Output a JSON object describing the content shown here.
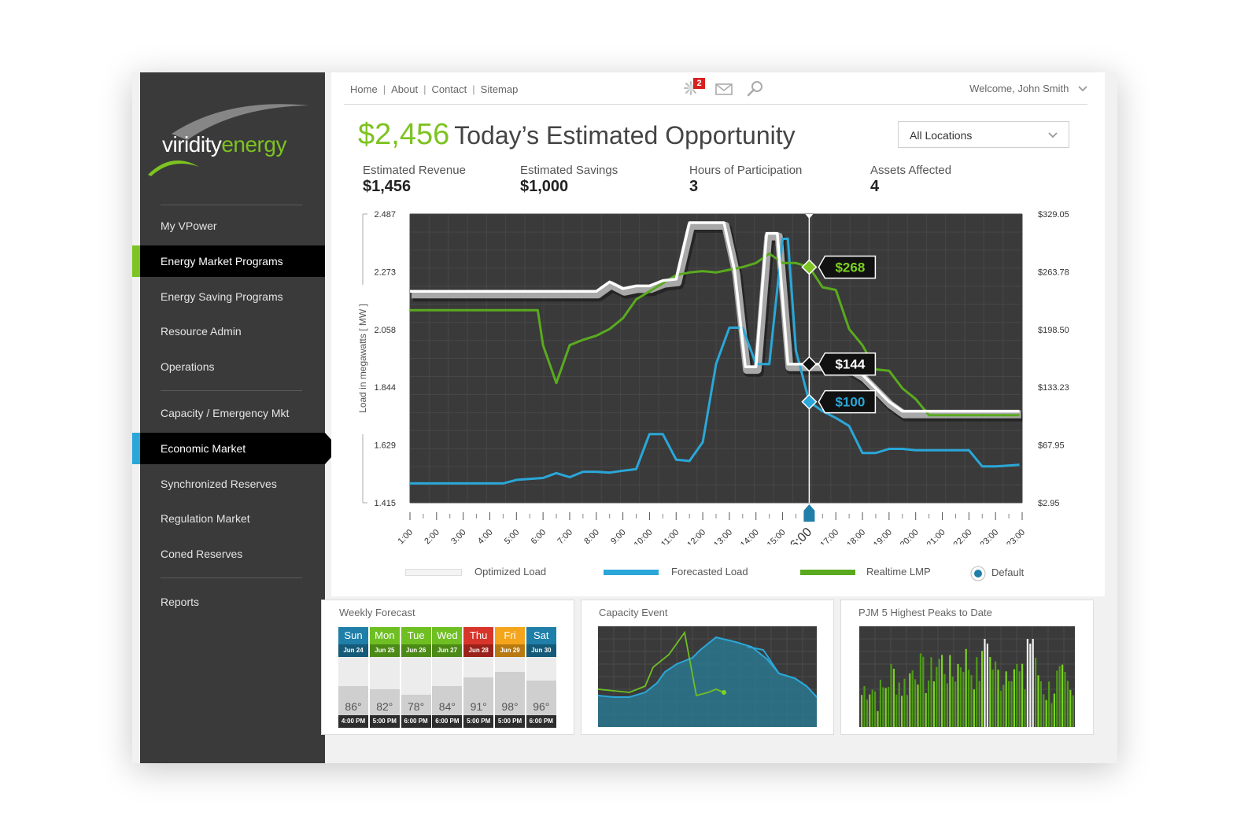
{
  "brand": {
    "part1": "viridity",
    "part2": "energy"
  },
  "nav": {
    "items": [
      {
        "label": "My VPower"
      },
      {
        "label": "Energy Market Programs"
      },
      {
        "label": "Energy Saving Programs"
      },
      {
        "label": "Resource Admin"
      },
      {
        "label": "Operations"
      },
      {
        "label": "Capacity / Emergency Mkt"
      },
      {
        "label": "Economic Market"
      },
      {
        "label": "Synchronized Reserves"
      },
      {
        "label": "Regulation Market"
      },
      {
        "label": "Coned Reserves"
      },
      {
        "label": "Reports"
      }
    ],
    "accent_green": "#7dc321",
    "accent_blue": "#2aa7d8"
  },
  "topnav": {
    "links": [
      "Home",
      "About",
      "Contact",
      "Sitemap"
    ],
    "sep": "|",
    "alert_count": "2",
    "welcome": "Welcome, John Smith"
  },
  "header": {
    "amount": "$2,456",
    "title": "Today’s Estimated Opportunity",
    "location": "All Locations"
  },
  "stats": [
    {
      "label": "Estimated Revenue",
      "value": "$1,456"
    },
    {
      "label": "Estimated Savings",
      "value": "$1,000"
    },
    {
      "label": "Hours of Participation",
      "value": "3"
    },
    {
      "label": "Assets Affected",
      "value": "4"
    }
  ],
  "chart_data": {
    "type": "line",
    "ylabel": "Load in megawatts [ MW ]",
    "y_ticks": [
      "2.487",
      "2.273",
      "2.058",
      "1.844",
      "1.629",
      "1.415"
    ],
    "y2_ticks": [
      "$329.05",
      "$263.78",
      "$198.50",
      "$133.23",
      "$67.95",
      "$2.95"
    ],
    "ylim": [
      1.415,
      2.487
    ],
    "x_ticks": [
      "1:00",
      "2:00",
      "3:00",
      "4:00",
      "5:00",
      "6:00",
      "7:00",
      "8:00",
      "9:00",
      "10:00",
      "11:00",
      "12:00",
      "13:00",
      "14:00",
      "15:00",
      "16:00",
      "17:00",
      "18:00",
      "19:00",
      "20:00",
      "21:00",
      "22:00",
      "23:00",
      "23:00"
    ],
    "selected_x": "16:00",
    "callouts": [
      {
        "label": "$268",
        "series": "Realtime LMP",
        "value": 2.29
      },
      {
        "label": "$144",
        "series": "Optimized Load",
        "value": 1.93
      },
      {
        "label": "$100",
        "series": "Forecasted Load",
        "value": 1.79
      }
    ],
    "series": [
      {
        "name": "Optimized Load",
        "color": "#ffffff",
        "points": [
          [
            0,
            2.2
          ],
          [
            7,
            2.2
          ],
          [
            7.5,
            2.235
          ],
          [
            8,
            2.21
          ],
          [
            8.5,
            2.22
          ],
          [
            9,
            2.22
          ],
          [
            9.5,
            2.24
          ],
          [
            10,
            2.245
          ],
          [
            10.5,
            2.455
          ],
          [
            11,
            2.455
          ],
          [
            11.5,
            2.455
          ],
          [
            11.8,
            2.455
          ],
          [
            12.2,
            2.275
          ],
          [
            12.6,
            1.92
          ],
          [
            13,
            1.92
          ],
          [
            13.4,
            2.415
          ],
          [
            13.8,
            2.415
          ],
          [
            14.2,
            1.93
          ],
          [
            14.5,
            1.93
          ],
          [
            15,
            1.93
          ],
          [
            15.5,
            1.93
          ],
          [
            16,
            1.93
          ],
          [
            16.5,
            1.92
          ],
          [
            17,
            1.89
          ],
          [
            17.5,
            1.84
          ],
          [
            18,
            1.79
          ],
          [
            18.5,
            1.755
          ],
          [
            19,
            1.755
          ],
          [
            22.9,
            1.755
          ]
        ]
      },
      {
        "name": "Forecasted Load",
        "color": "#2aa7d8",
        "points": [
          [
            0,
            1.487
          ],
          [
            3.5,
            1.487
          ],
          [
            4,
            1.5
          ],
          [
            5,
            1.507
          ],
          [
            5.5,
            1.525
          ],
          [
            6,
            1.51
          ],
          [
            6.5,
            1.53
          ],
          [
            7,
            1.53
          ],
          [
            7.5,
            1.527
          ],
          [
            8,
            1.534
          ],
          [
            8.5,
            1.54
          ],
          [
            9,
            1.67
          ],
          [
            9.5,
            1.67
          ],
          [
            10,
            1.575
          ],
          [
            10.5,
            1.57
          ],
          [
            11,
            1.64
          ],
          [
            11.5,
            1.93
          ],
          [
            12,
            2.065
          ],
          [
            12.5,
            2.065
          ],
          [
            13,
            1.93
          ],
          [
            13.5,
            1.93
          ],
          [
            14,
            2.395
          ],
          [
            14.2,
            2.395
          ],
          [
            14.5,
            1.98
          ],
          [
            15,
            1.79
          ],
          [
            15.5,
            1.755
          ],
          [
            16,
            1.73
          ],
          [
            16.5,
            1.7
          ],
          [
            17,
            1.6
          ],
          [
            17.5,
            1.6
          ],
          [
            18,
            1.615
          ],
          [
            18.5,
            1.615
          ],
          [
            19,
            1.61
          ],
          [
            19.5,
            1.61
          ],
          [
            20,
            1.61
          ],
          [
            20.5,
            1.61
          ],
          [
            21,
            1.61
          ],
          [
            21.5,
            1.55
          ],
          [
            22,
            1.55
          ],
          [
            22.9,
            1.556
          ]
        ]
      },
      {
        "name": "Realtime LMP",
        "color": "#5aaa1f",
        "points": [
          [
            0,
            2.13
          ],
          [
            4.5,
            2.13
          ],
          [
            4.8,
            2.13
          ],
          [
            5,
            2.0
          ],
          [
            5.5,
            1.86
          ],
          [
            6,
            2.0
          ],
          [
            6.5,
            2.02
          ],
          [
            7,
            2.035
          ],
          [
            7.5,
            2.06
          ],
          [
            8,
            2.1
          ],
          [
            8.5,
            2.17
          ],
          [
            9,
            2.2
          ],
          [
            9.5,
            2.23
          ],
          [
            10,
            2.26
          ],
          [
            10.5,
            2.27
          ],
          [
            11,
            2.275
          ],
          [
            11.5,
            2.27
          ],
          [
            12,
            2.28
          ],
          [
            12.5,
            2.29
          ],
          [
            13,
            2.305
          ],
          [
            13.5,
            2.34
          ],
          [
            14,
            2.305
          ],
          [
            14.5,
            2.305
          ],
          [
            15,
            2.29
          ],
          [
            15.5,
            2.215
          ],
          [
            16,
            2.205
          ],
          [
            16.5,
            2.06
          ],
          [
            17,
            2.0
          ],
          [
            17.5,
            1.91
          ],
          [
            18,
            1.905
          ],
          [
            18.5,
            1.84
          ],
          [
            19,
            1.8
          ],
          [
            19.5,
            1.74
          ],
          [
            20,
            1.74
          ],
          [
            22.9,
            1.74
          ]
        ]
      }
    ],
    "legend": [
      {
        "name": "Optimized Load"
      },
      {
        "name": "Forecasted Load"
      },
      {
        "name": "Realtime LMP"
      },
      {
        "name": "Default"
      }
    ]
  },
  "weekly": {
    "title": "Weekly Forecast",
    "days": [
      {
        "name": "Sun",
        "date": "Jun 24",
        "temp": "86°",
        "time": "4:00 PM",
        "color": "#1f7fa8",
        "level": 0.5
      },
      {
        "name": "Mon",
        "date": "Jun 25",
        "temp": "82°",
        "time": "5:00 PM",
        "color": "#6fbf23",
        "level": 0.45
      },
      {
        "name": "Tue",
        "date": "Jun 26",
        "temp": "78°",
        "time": "6:00 PM",
        "color": "#6fbf23",
        "level": 0.35
      },
      {
        "name": "Wed",
        "date": "Jun 27",
        "temp": "84°",
        "time": "6:00 PM",
        "color": "#6fbf23",
        "level": 0.5
      },
      {
        "name": "Thu",
        "date": "Jun 28",
        "temp": "91°",
        "time": "5:00 PM",
        "color": "#d8352a",
        "level": 0.65
      },
      {
        "name": "Fri",
        "date": "Jun 29",
        "temp": "98°",
        "time": "5:00 PM",
        "color": "#f4a51c",
        "level": 0.75
      },
      {
        "name": "Sat",
        "date": "Jun 30",
        "temp": "96°",
        "time": "6:00 PM",
        "color": "#1f7fa8",
        "level": 0.6
      }
    ]
  },
  "capacity": {
    "title": "Capacity Event"
  },
  "pjm": {
    "title": "PJM 5 Highest Peaks to Date"
  }
}
